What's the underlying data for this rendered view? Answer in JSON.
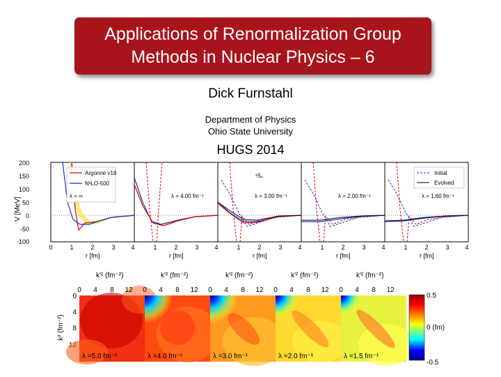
{
  "title_line1": "Applications of Renormalization Group",
  "title_line2": "Methods in Nuclear Physics – 6",
  "author": "Dick Furnstahl",
  "dept_line1": "Department of Physics",
  "dept_line2": "Ohio State University",
  "event": "HUGS 2014",
  "potential_plot": {
    "y_label": "V [MeV]",
    "y_ticks": [
      "200",
      "150",
      "100",
      "50",
      "0",
      "-50",
      "-100"
    ],
    "x_ticks": [
      "0",
      "1",
      "2",
      "3",
      "4"
    ],
    "x_label": "r [fm]",
    "legend_left": [
      "Argonne v18",
      "N³LO-500"
    ],
    "legend_right": [
      "Initial",
      "Evolved"
    ],
    "channel": "¹S₀",
    "panel_lambdas": [
      "λ = ∞",
      "λ = 4.00 fm⁻¹",
      "λ = 3.00 fm⁻¹",
      "λ = 2.00 fm⁻¹",
      "λ = 1.60 fm⁻¹"
    ]
  },
  "momentum_plot": {
    "col_label": "k'² (fm⁻²)",
    "x_ticks": [
      "0",
      "4",
      "8",
      "12"
    ],
    "y_label": "k² (fm⁻²)",
    "y_ticks": [
      "0",
      "4",
      "8",
      "12"
    ],
    "panel_lambdas": [
      "λ =5.0 fm⁻¹",
      "λ =4.0 fm⁻¹",
      "λ =3.0 fm⁻¹",
      "λ =2.0 fm⁻¹",
      "λ =1.5 fm⁻¹"
    ],
    "colorbar_ticks": [
      "0.5",
      "0 (fm)",
      "-0.5"
    ]
  }
}
